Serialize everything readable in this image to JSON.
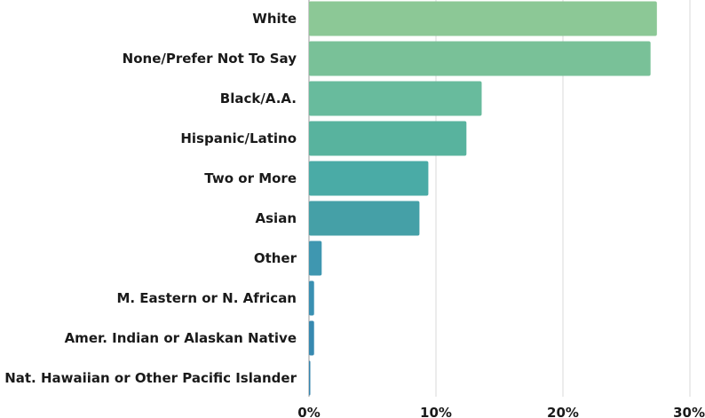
{
  "chart_data": {
    "type": "bar",
    "orientation": "horizontal",
    "categories": [
      "White",
      "None/Prefer Not To Say",
      "Black/A.A.",
      "Hispanic/Latino",
      "Two or More",
      "Asian",
      "Other",
      "M. Eastern or N. African",
      "Amer. Indian or Alaskan Native",
      "Nat. Hawaiian or Other Pacific Islander"
    ],
    "values": [
      27.4,
      26.9,
      13.6,
      12.4,
      9.4,
      8.7,
      1.0,
      0.4,
      0.4,
      0.1
    ],
    "colors": [
      "#8cc896",
      "#79c198",
      "#68bb9d",
      "#58b39e",
      "#4aaba6",
      "#45a0a7",
      "#3f97b0",
      "#3a90b2",
      "#3789b0",
      "#3584ad"
    ],
    "xlim": [
      0,
      30
    ],
    "xticks": [
      "0%",
      "10%",
      "20%",
      "30%"
    ],
    "xtick_values": [
      0,
      10,
      20,
      30
    ],
    "grid": true,
    "title": "",
    "xlabel": "",
    "ylabel": ""
  }
}
